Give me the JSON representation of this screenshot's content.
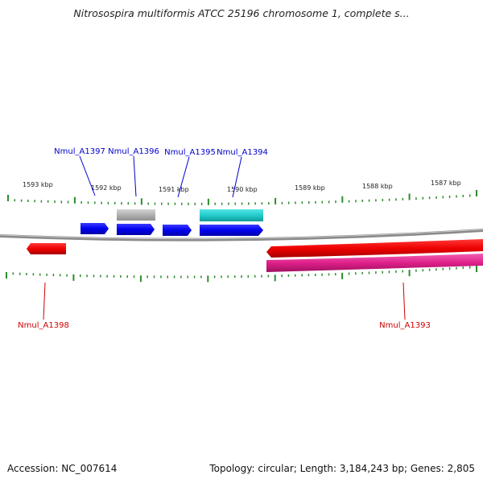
{
  "title": "Nitrosospira multiformis ATCC 25196 chromosome 1, complete s...",
  "footer": {
    "accession": "Accession: NC_007614",
    "stats": "Topology: circular; Length: 3,184,243 bp; Genes: 2,805"
  },
  "colors": {
    "forward_gene": "#0000ee",
    "reverse_gene": "#ee0000",
    "grey_feature": "#b0b0b0",
    "cyan_feature": "#22cccc",
    "magenta_feature": "#e0208a",
    "ticks": "#2d8b2d",
    "forward_label": "#0000cc",
    "reverse_label": "#cc0000"
  },
  "ruler": {
    "ticks": [
      "1593 kbp",
      "1592 kbp",
      "1591 kbp",
      "1590 kbp",
      "1589 kbp",
      "1588 kbp",
      "1587 kbp"
    ]
  },
  "forward_genes": [
    "Nmul_A1397",
    "Nmul_A1396",
    "Nmul_A1395",
    "Nmul_A1394"
  ],
  "reverse_genes": [
    "Nmul_A1398",
    "Nmul_A1393"
  ]
}
